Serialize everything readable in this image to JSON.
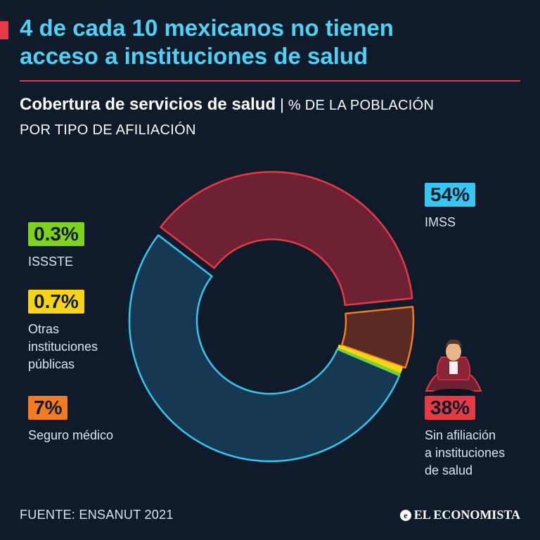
{
  "header": {
    "title_line1": "4 de cada 10 mexicanos no tienen",
    "title_line2": "acceso a instituciones de salud",
    "subtitle_bold": "Cobertura de servicios de salud",
    "subtitle_sep": "|",
    "subtitle_unit_line1": "% DE LA POBLACIÓN",
    "subtitle_unit_line2": "POR TIPO DE AFILIACIÓN"
  },
  "labels": {
    "imss": {
      "pct": "54%",
      "name": "IMSS"
    },
    "issste": {
      "pct": "0.3%",
      "name": "ISSSTE"
    },
    "otras": {
      "pct": "0.7%",
      "name_l1": "Otras",
      "name_l2": "instituciones",
      "name_l3": "públicas"
    },
    "seguro": {
      "pct": "7%",
      "name": "Seguro médico"
    },
    "sin": {
      "pct": "38%",
      "name_l1": "Sin afiliación",
      "name_l2": "a instituciones",
      "name_l3": "de salud"
    }
  },
  "footer": {
    "source": "FUENTE: ENSANUT 2021",
    "brand": "EL ECONOMISTA",
    "brand_icon": "e"
  },
  "chart_data": {
    "type": "pie",
    "style": "donut",
    "title": "Cobertura de servicios de salud",
    "unit": "% de la población por tipo de afiliación",
    "categories": [
      "IMSS",
      "Sin afiliación a instituciones de salud",
      "Seguro médico",
      "Otras instituciones públicas",
      "ISSSTE"
    ],
    "values": [
      54,
      38,
      7,
      0.7,
      0.3
    ],
    "colors": {
      "IMSS": {
        "fill": "#173852",
        "stroke": "#35c7f0"
      },
      "Sin afiliación a instituciones de salud": {
        "fill": "#6e2132",
        "stroke": "#e63946"
      },
      "Seguro médico": {
        "fill": "#5a2a24",
        "stroke": "#f47b20"
      },
      "Otras instituciones públicas": {
        "fill": "#f7d417",
        "stroke": "#f7d417"
      },
      "ISSSTE": {
        "fill": "#7ed321",
        "stroke": "#7ed321"
      }
    }
  }
}
